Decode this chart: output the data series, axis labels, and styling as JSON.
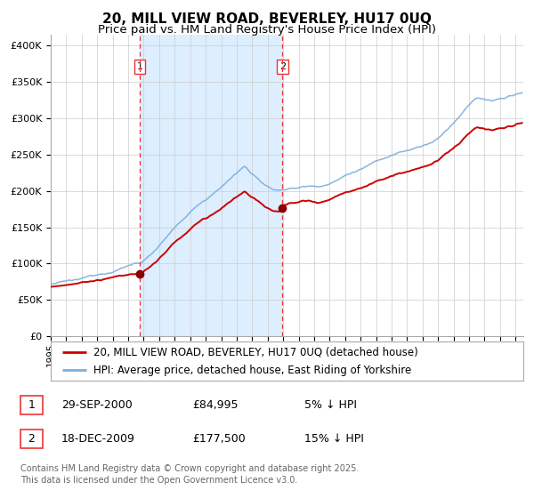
{
  "title": "20, MILL VIEW ROAD, BEVERLEY, HU17 0UQ",
  "subtitle": "Price paid vs. HM Land Registry's House Price Index (HPI)",
  "ylabel_ticks": [
    "£0",
    "£50K",
    "£100K",
    "£150K",
    "£200K",
    "£250K",
    "£300K",
    "£350K",
    "£400K"
  ],
  "ytick_values": [
    0,
    50000,
    100000,
    150000,
    200000,
    250000,
    300000,
    350000,
    400000
  ],
  "ylim": [
    0,
    415000
  ],
  "xlim_start": 1995.0,
  "xlim_end": 2025.5,
  "purchase1_date": 2000.75,
  "purchase1_price": 84995,
  "purchase2_date": 2009.96,
  "purchase2_price": 177500,
  "legend_line1": "20, MILL VIEW ROAD, BEVERLEY, HU17 0UQ (detached house)",
  "legend_line2": "HPI: Average price, detached house, East Riding of Yorkshire",
  "footnote": "Contains HM Land Registry data © Crown copyright and database right 2025.\nThis data is licensed under the Open Government Licence v3.0.",
  "red_line_color": "#cc0000",
  "blue_line_color": "#7aaddb",
  "shade_color": "#ddeeff",
  "grid_color": "#cccccc",
  "bg_color": "#ffffff",
  "dashed_line_color": "#ee3333",
  "marker_color": "#880000",
  "title_fontsize": 11,
  "subtitle_fontsize": 9.5,
  "tick_fontsize": 8,
  "legend_fontsize": 8.5,
  "table_fontsize": 9,
  "footnote_fontsize": 7
}
